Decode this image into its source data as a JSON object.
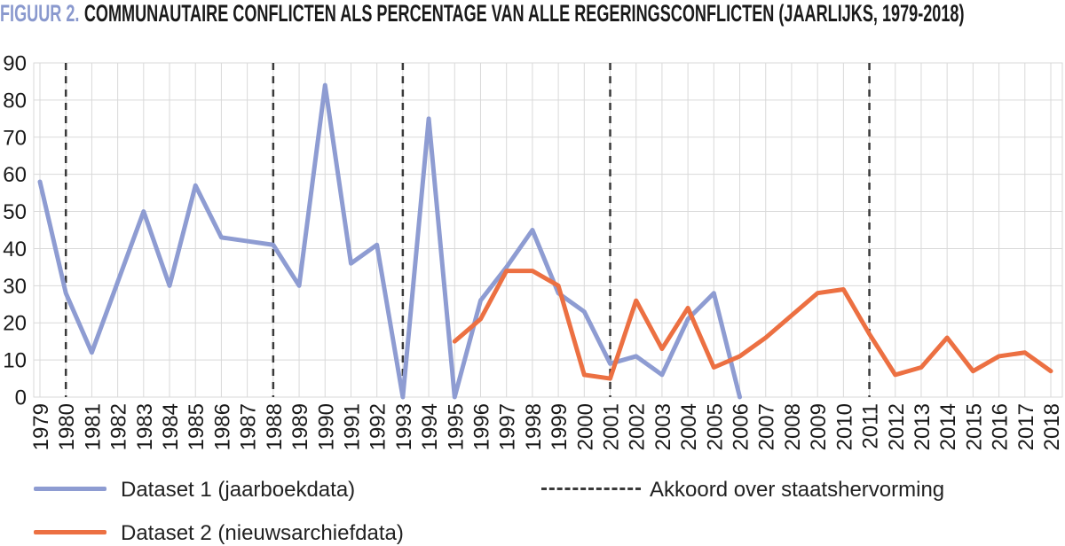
{
  "title": {
    "prefix": "FIGUUR 2.",
    "text": "COMMUNAUTAIRE CONFLICTEN ALS PERCENTAGE VAN ALLE REGERINGSCONFLICTEN (JAARLIJKS, 1979-2018)"
  },
  "colors": {
    "dataset1": "#8e9cd2",
    "dataset2": "#ec7042",
    "grid": "#d9d9d9",
    "plot_border": "#d9d9d9",
    "reform_dash": "#3a3a3a",
    "text": "#1a1a1a",
    "title_accent": "#8a99ce"
  },
  "legend": {
    "dataset1_label": "Dataset 1 (jaarboekdata)",
    "dataset2_label": "Dataset 2 (nieuwsarchiefdata)",
    "reform_label": "Akkoord over staatshervorming"
  },
  "chart_data": {
    "type": "line",
    "title": "Communautaire conflicten als percentage van alle regeringsconflicten (jaarlijks, 1979-2018)",
    "x": [
      1979,
      1980,
      1981,
      1982,
      1983,
      1984,
      1985,
      1986,
      1987,
      1988,
      1989,
      1990,
      1991,
      1992,
      1993,
      1994,
      1995,
      1996,
      1997,
      1998,
      1999,
      2000,
      2001,
      2002,
      2003,
      2004,
      2005,
      2006,
      2007,
      2008,
      2009,
      2010,
      2011,
      2012,
      2013,
      2014,
      2015,
      2016,
      2017,
      2018
    ],
    "series": [
      {
        "name": "Dataset 1 (jaarboekdata)",
        "color": "#8e9cd2",
        "values": [
          58,
          28,
          12,
          31,
          50,
          30,
          57,
          43,
          42,
          41,
          30,
          84,
          36,
          41,
          0,
          75,
          0,
          26,
          35,
          45,
          28,
          23,
          9,
          11,
          6,
          21,
          28,
          0,
          null,
          null,
          null,
          null,
          null,
          null,
          null,
          null,
          null,
          null,
          null,
          null
        ]
      },
      {
        "name": "Dataset 2 (nieuwsarchiefdata)",
        "color": "#ec7042",
        "values": [
          null,
          null,
          null,
          null,
          null,
          null,
          null,
          null,
          null,
          null,
          null,
          null,
          null,
          null,
          null,
          null,
          15,
          21,
          34,
          34,
          30,
          6,
          5,
          26,
          13,
          24,
          8,
          11,
          16,
          22,
          28,
          29,
          17,
          6,
          8,
          16,
          7,
          11,
          12,
          7
        ]
      }
    ],
    "reform_years": [
      1980,
      1988,
      1993,
      2001,
      2011
    ],
    "reform_label": "Akkoord over staatshervorming",
    "ylim": [
      0,
      90
    ],
    "yticks": [
      0,
      10,
      20,
      30,
      40,
      50,
      60,
      70,
      80,
      90
    ],
    "grid": true,
    "legend_position": "bottom"
  }
}
